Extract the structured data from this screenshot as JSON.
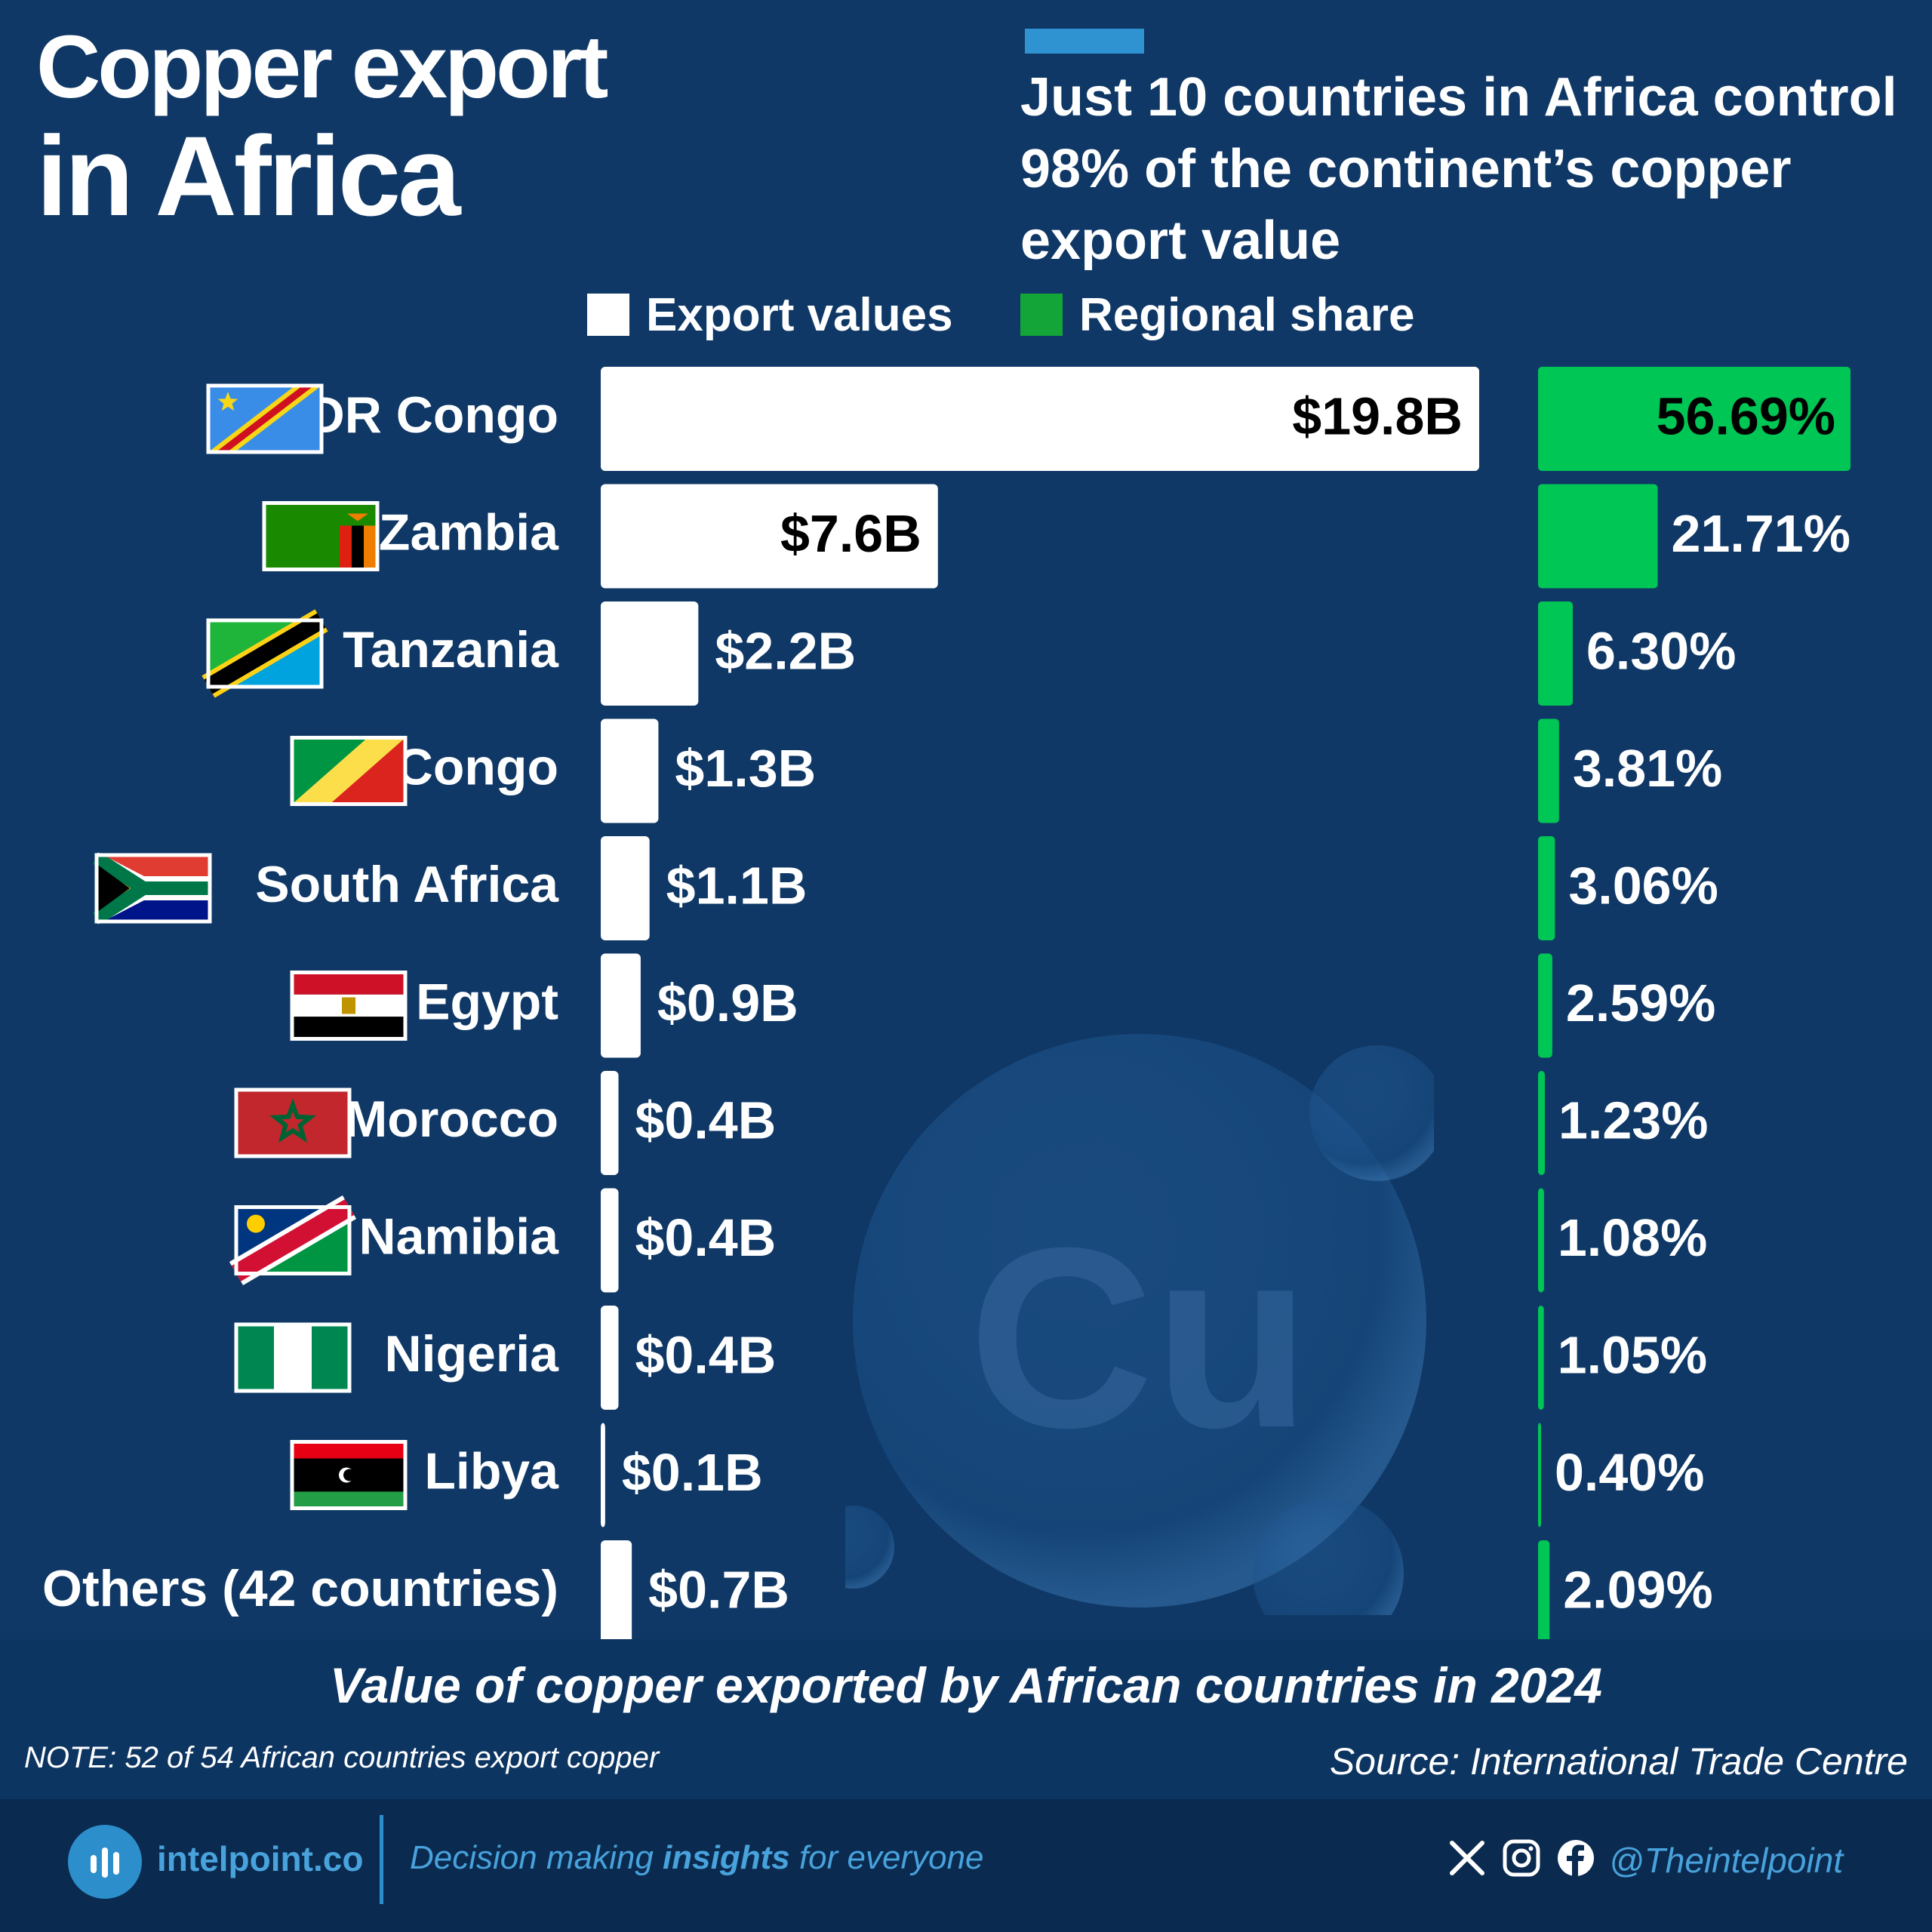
{
  "title": {
    "line1": "Copper export",
    "line2": "in Africa"
  },
  "subtitle": "Just 10 countries in Africa control 98% of the continent’s copper export value",
  "legend": {
    "export_label": "Export values",
    "share_label": "Regional share",
    "export_color": "#ffffff",
    "share_color": "#13a538"
  },
  "chart_data": {
    "type": "bar",
    "orientation": "horizontal",
    "title": "Value of copper exported by African countries in 2024",
    "categories": [
      "DR Congo",
      "Zambia",
      "Tanzania",
      "Congo",
      "South Africa",
      "Egypt",
      "Morocco",
      "Namibia",
      "Nigeria",
      "Libya",
      "Others (42 countries)"
    ],
    "series": [
      {
        "name": "Export values",
        "values": [
          19.8,
          7.6,
          2.2,
          1.3,
          1.1,
          0.9,
          0.4,
          0.4,
          0.4,
          0.1,
          0.7
        ],
        "labels": [
          "$19.8B",
          "$7.6B",
          "$2.2B",
          "$1.3B",
          "$1.1B",
          "$0.9B",
          "$0.4B",
          "$0.4B",
          "$0.4B",
          "$0.1B",
          "$0.7B"
        ],
        "color": "#ffffff"
      },
      {
        "name": "Regional share",
        "values": [
          56.69,
          21.71,
          6.3,
          3.81,
          3.06,
          2.59,
          1.23,
          1.08,
          1.05,
          0.4,
          2.09
        ],
        "labels": [
          "56.69%",
          "21.71%",
          "6.30%",
          "3.81%",
          "3.06%",
          "2.59%",
          "1.23%",
          "1.08%",
          "1.05%",
          "0.40%",
          "2.09%"
        ],
        "color": "#00c655"
      }
    ],
    "flags": [
      "cd-flag-icon",
      "zm-flag-icon",
      "tz-flag-icon",
      "cg-flag-icon",
      "za-flag-icon",
      "eg-flag-icon",
      "ma-flag-icon",
      "na-flag-icon",
      "ng-flag-icon",
      "ly-flag-icon",
      ""
    ],
    "grid": false
  },
  "watermark": {
    "text": "Cu"
  },
  "note": "NOTE: 52 of 54 African countries export copper",
  "source": "Source: International Trade Centre",
  "footer": {
    "brand": "intelpoint.co",
    "tagline_pre": "Decision making ",
    "tagline_bold": "insights",
    "tagline_post": " for everyone",
    "handle": "@Theintelpoint",
    "icons": [
      "x-icon",
      "instagram-icon",
      "facebook-icon"
    ]
  }
}
